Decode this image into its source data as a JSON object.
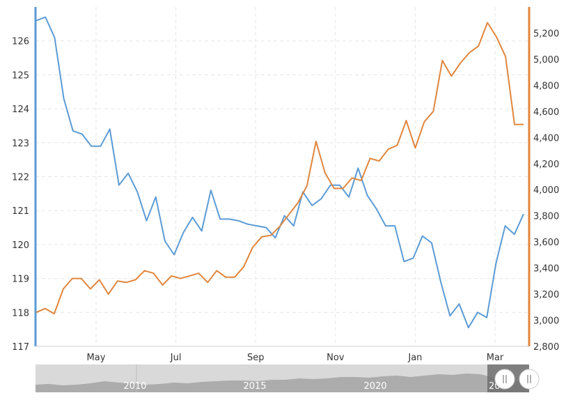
{
  "chart_data": {
    "type": "line",
    "x_labels": [
      "May",
      "Jul",
      "Sep",
      "Nov",
      "Jan",
      "Mar"
    ],
    "y_left": {
      "ticks": [
        "117",
        "118",
        "119",
        "120",
        "121",
        "122",
        "123",
        "124",
        "125",
        "126"
      ],
      "range": [
        117,
        127
      ],
      "color": "#5b9bd5"
    },
    "y_right": {
      "ticks": [
        "2,800",
        "3,000",
        "3,200",
        "3,400",
        "3,600",
        "3,800",
        "4,000",
        "4,200",
        "4,400",
        "4,600",
        "4,800",
        "5,000",
        "5,200"
      ],
      "range": [
        2800,
        5400
      ],
      "color": "#e0853c"
    },
    "grid": true,
    "series": [
      {
        "axis": "left",
        "color": "#5b9bd5",
        "values": [
          126.6,
          126.7,
          126.1,
          124.3,
          123.35,
          123.25,
          122.9,
          122.9,
          123.4,
          121.75,
          122.1,
          121.55,
          120.7,
          121.4,
          120.1,
          119.7,
          120.35,
          120.8,
          120.4,
          121.6,
          120.75,
          120.75,
          120.7,
          120.6,
          120.55,
          120.5,
          120.2,
          120.85,
          120.55,
          121.55,
          121.15,
          121.35,
          121.75,
          121.75,
          121.4,
          122.25,
          121.45,
          121.05,
          120.55,
          120.55,
          119.5,
          119.6,
          120.25,
          120.05,
          118.9,
          117.9,
          118.25,
          117.55,
          118.0,
          117.85,
          119.45,
          120.55,
          120.3,
          120.9
        ]
      },
      {
        "axis": "right",
        "color": "#e0853c",
        "values": [
          3060,
          3090,
          3050,
          3240,
          3320,
          3320,
          3240,
          3310,
          3200,
          3300,
          3290,
          3310,
          3380,
          3360,
          3270,
          3340,
          3320,
          3340,
          3360,
          3290,
          3380,
          3330,
          3330,
          3410,
          3560,
          3640,
          3650,
          3720,
          3810,
          3900,
          4030,
          4370,
          4130,
          4010,
          4010,
          4090,
          4070,
          4240,
          4220,
          4310,
          4340,
          4530,
          4320,
          4520,
          4600,
          4990,
          4870,
          4970,
          5050,
          5100,
          5280,
          5170,
          5020,
          4500,
          4500
        ]
      }
    ]
  },
  "navigator": {
    "labels": [
      "2010",
      "2015",
      "2020",
      "20"
    ]
  }
}
